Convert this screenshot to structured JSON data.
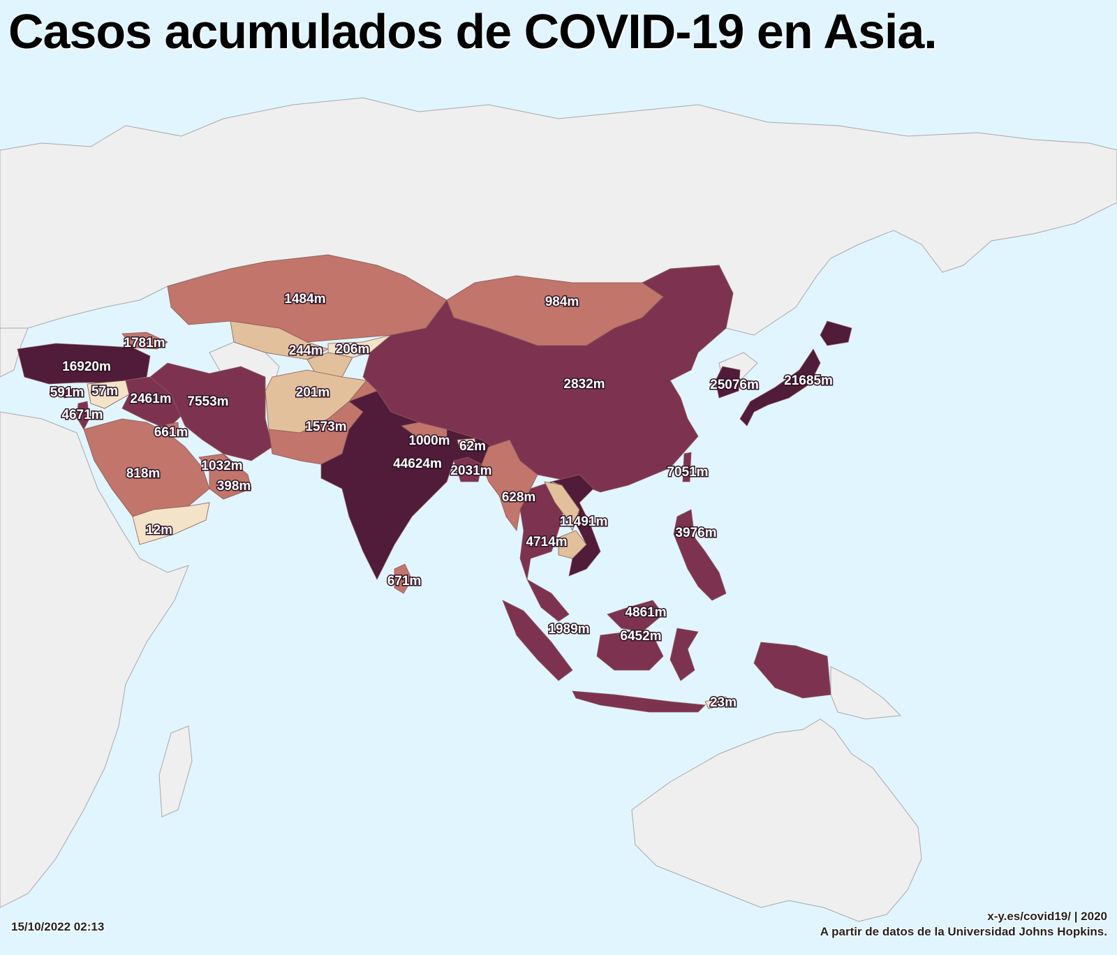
{
  "title": "Casos acumulados de COVID-19 en Asia.",
  "timestamp": "15/10/2022 02:13",
  "credit_line1": "x-y.es/covid19/ | 2020",
  "credit_line2": "A partir de datos de la Universidad Johns Hopkins.",
  "colors": {
    "ocean": "#e1f5fe",
    "no_data_land": "#efefef",
    "level_1": "#f3e3c8",
    "level_2": "#e2c09c",
    "level_3": "#c2756a",
    "level_4": "#7d3350",
    "level_5": "#511b3a"
  },
  "map_data": {
    "type": "choropleth",
    "region": "Asia",
    "labels": [
      {
        "id": "kazakhstan",
        "text": "1484m",
        "level": 3
      },
      {
        "id": "mongolia",
        "text": "984m",
        "level": 3
      },
      {
        "id": "georgia",
        "text": "1781m",
        "level": 3
      },
      {
        "id": "uzbekistan",
        "text": "244m",
        "level": 2
      },
      {
        "id": "kyrgyzstan",
        "text": "206m",
        "level": 1
      },
      {
        "id": "turkey",
        "text": "16920m",
        "level": 5
      },
      {
        "id": "china",
        "text": "2832m",
        "level": 4
      },
      {
        "id": "south-korea",
        "text": "25076m",
        "level": 5
      },
      {
        "id": "japan",
        "text": "21685m",
        "level": 5
      },
      {
        "id": "cyprus",
        "text": "591m",
        "level": 4
      },
      {
        "id": "syria",
        "text": "57m",
        "level": 1
      },
      {
        "id": "iraq",
        "text": "2461m",
        "level": 4
      },
      {
        "id": "iran",
        "text": "7553m",
        "level": 4
      },
      {
        "id": "tajikistan",
        "text": "201m",
        "level": 2
      },
      {
        "id": "israel",
        "text": "4671m",
        "level": 4
      },
      {
        "id": "kuwait",
        "text": "661m",
        "level": 3
      },
      {
        "id": "pakistan",
        "text": "1573m",
        "level": 3
      },
      {
        "id": "nepal",
        "text": "1000m",
        "level": 3
      },
      {
        "id": "bhutan",
        "text": "62m",
        "level": 1
      },
      {
        "id": "india",
        "text": "44624m",
        "level": 5
      },
      {
        "id": "bangladesh",
        "text": "2031m",
        "level": 4
      },
      {
        "id": "uae",
        "text": "1032m",
        "level": 3
      },
      {
        "id": "saudi-arabia",
        "text": "818m",
        "level": 3
      },
      {
        "id": "oman",
        "text": "398m",
        "level": 3
      },
      {
        "id": "taiwan",
        "text": "7051m",
        "level": 4
      },
      {
        "id": "myanmar",
        "text": "628m",
        "level": 3
      },
      {
        "id": "vietnam",
        "text": "11491m",
        "level": 5
      },
      {
        "id": "yemen",
        "text": "12m",
        "level": 1
      },
      {
        "id": "thailand",
        "text": "4714m",
        "level": 4
      },
      {
        "id": "philippines",
        "text": "3976m",
        "level": 4
      },
      {
        "id": "sri-lanka",
        "text": "671m",
        "level": 3
      },
      {
        "id": "brunei",
        "text": "4861m",
        "level": 4
      },
      {
        "id": "malaysia",
        "text": "6452m",
        "level": 4
      },
      {
        "id": "singapore",
        "text": "1989m",
        "level": 4
      },
      {
        "id": "timor-leste",
        "text": "23m",
        "level": 1
      }
    ]
  }
}
